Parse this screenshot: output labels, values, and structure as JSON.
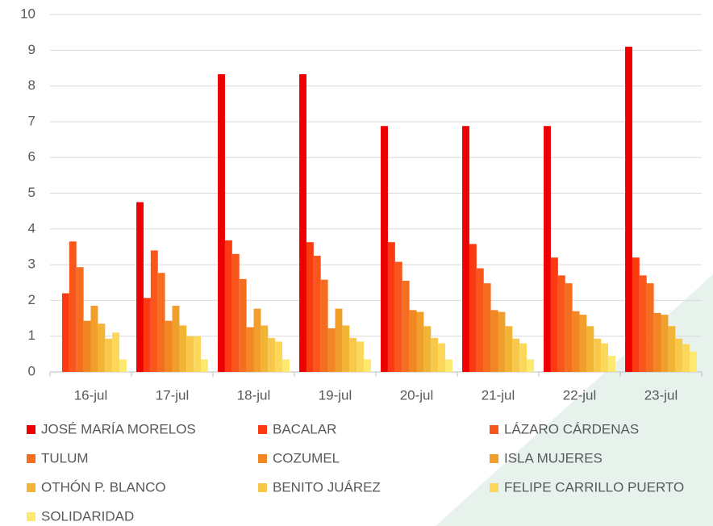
{
  "chart_data": {
    "type": "bar",
    "categories": [
      "16-jul",
      "17-jul",
      "18-jul",
      "19-jul",
      "20-jul",
      "21-jul",
      "22-jul",
      "23-jul"
    ],
    "series": [
      {
        "name": "JOSÉ MARÍA MORELOS",
        "color": "#ee0000",
        "values": [
          0,
          4.75,
          8.33,
          8.33,
          6.88,
          6.88,
          6.88,
          9.1
        ]
      },
      {
        "name": "BACALAR",
        "color": "#fc3a12",
        "values": [
          2.2,
          2.07,
          3.68,
          3.63,
          3.63,
          3.58,
          3.2,
          3.2
        ]
      },
      {
        "name": "LÁZARO CÁRDENAS",
        "color": "#f8561a",
        "values": [
          3.65,
          3.4,
          3.3,
          3.25,
          3.08,
          2.9,
          2.7,
          2.7
        ]
      },
      {
        "name": "TULUM",
        "color": "#f56e20",
        "values": [
          2.93,
          2.77,
          2.6,
          2.58,
          2.55,
          2.48,
          2.48,
          2.48
        ]
      },
      {
        "name": "COZUMEL",
        "color": "#f28622",
        "values": [
          1.43,
          1.43,
          1.25,
          1.22,
          1.73,
          1.73,
          1.7,
          1.65
        ]
      },
      {
        "name": "ISLA MUJERES",
        "color": "#f09e2c",
        "values": [
          1.85,
          1.85,
          1.77,
          1.77,
          1.68,
          1.68,
          1.6,
          1.6
        ]
      },
      {
        "name": "OTHÓN P. BLANCO",
        "color": "#f2b435",
        "values": [
          1.35,
          1.3,
          1.3,
          1.3,
          1.28,
          1.28,
          1.28,
          1.28
        ]
      },
      {
        "name": "BENITO JUÁREZ",
        "color": "#f7c84a",
        "values": [
          0.93,
          1.0,
          0.95,
          0.95,
          0.95,
          0.93,
          0.93,
          0.93
        ]
      },
      {
        "name": "FELIPE CARRILLO PUERTO",
        "color": "#fbd85a",
        "values": [
          1.1,
          1.0,
          0.85,
          0.85,
          0.8,
          0.8,
          0.8,
          0.78
        ]
      },
      {
        "name": "SOLIDARIDAD",
        "color": "#fde870",
        "values": [
          0.35,
          0.35,
          0.35,
          0.35,
          0.35,
          0.35,
          0.45,
          0.57
        ]
      }
    ],
    "ylim": [
      0,
      10
    ],
    "yticks": [
      0,
      1,
      2,
      3,
      4,
      5,
      6,
      7,
      8,
      9,
      10
    ],
    "grid": true,
    "legend": "bottom"
  }
}
